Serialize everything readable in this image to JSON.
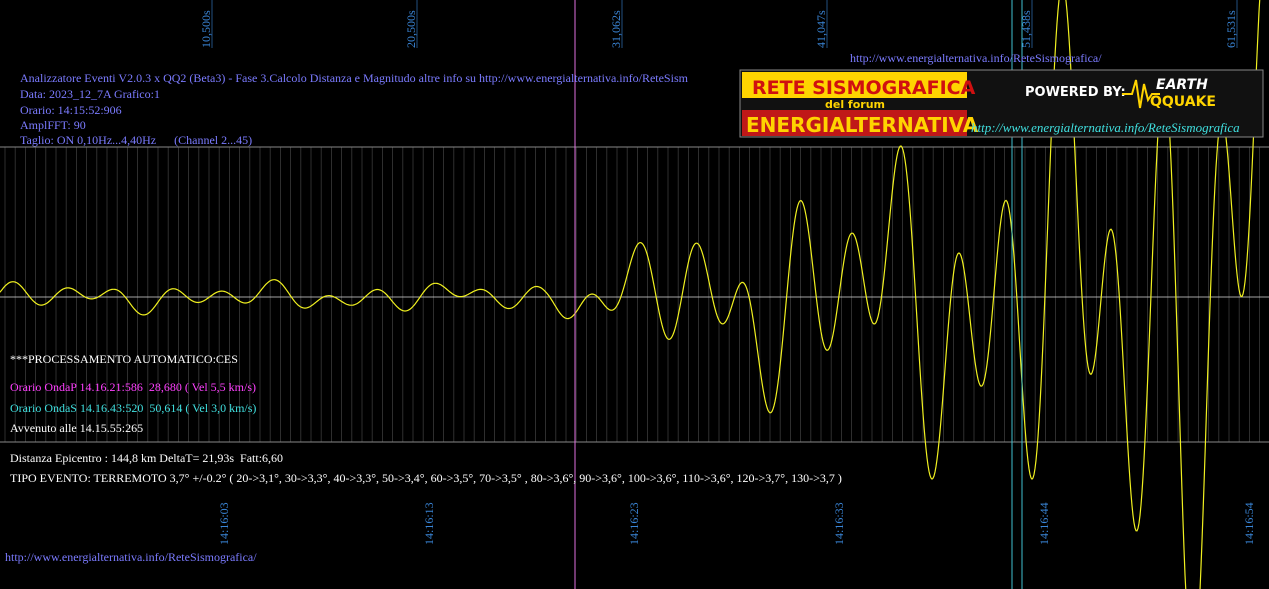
{
  "top_time_labels": [
    "10,500s",
    "20,500s",
    "31,062s",
    "41,047s",
    "51,438s",
    "61,531s"
  ],
  "bottom_time_labels": [
    "14:16:03",
    "14:16:13",
    "14:16:23",
    "14:16:33",
    "14:16:44",
    "14:16:54"
  ],
  "header": {
    "url": "http://www.energialternativa.info/ReteSismografica/",
    "lines": [
      "Analizzatore Eventi V2.0.3 x QQ2 (Beta3) - Fase 3.Calcolo Distanza e Magnitudo altre info su http://www.energialternativa.info/ReteSism",
      "Data: 2023_12_7A Grafico:1",
      "Orario: 14:15:52:906",
      "AmplFFT: 90",
      "Taglio: ON 0,10Hz...4,40Hz      (Channel 2...45)"
    ]
  },
  "logo": {
    "title": "RETE SISMOGRAFICA",
    "subtitle": "del forum",
    "brand": "ENERGIALTERNATIVA",
    "powered": "POWERED BY:",
    "earth": "EARTH",
    "quake": "QQUAKE",
    "url": "http://www.energialternativa.info/ReteSismografica"
  },
  "processing": {
    "title": "***PROCESSAMENTO AUTOMATICO:CES",
    "onda_p": "Orario OndaP 14.16.21:586  28,680 ( Vel 5,5 km/s)",
    "onda_s": "Orario OndaS 14.16.43:520  50,614 ( Vel 3,0 km/s)",
    "avvenuto": "Avvenuto alle 14.15.55:265",
    "distanza": "Distanza Epicentro : 144,8 km DeltaT= 21,93s  Fatt:6,60",
    "tipo": "TIPO EVENTO: TERREMOTO 3,7° +/-0.2° ( 20->3,1°, 30->3,3°, 40->3,3°, 50->3,4°, 60->3,5°, 70->3,5° , 80->3,6°, 90->3,6°, 100->3,6°, 110->3,6°, 120->3,7°, 130->3,7 )"
  },
  "footer_url": "http://www.energialternativa.info/ReteSismografica/"
}
